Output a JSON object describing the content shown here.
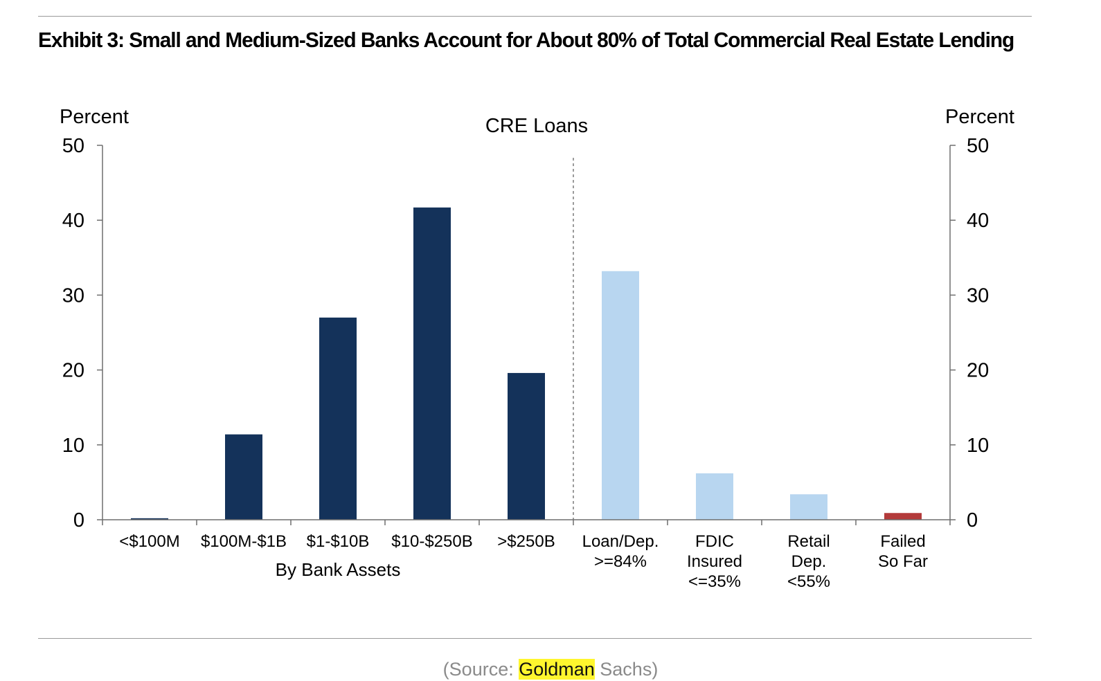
{
  "exhibit_title": "Exhibit 3: Small and Medium-Sized Banks Account for About 80% of Total Commercial Real Estate Lending",
  "source": {
    "prefix": "(Source: ",
    "highlight": "Goldman",
    "suffix": " Sachs)"
  },
  "colors": {
    "dark": "#14325a",
    "light": "#b8d6f0",
    "red": "#b33a3a",
    "axis": "#6e6e6e"
  },
  "chart_data": {
    "type": "bar",
    "title": "CRE Loans",
    "ylabel_left": "Percent",
    "ylabel_right": "Percent",
    "ylim": [
      0,
      50
    ],
    "yticks": [
      0,
      10,
      20,
      30,
      40,
      50
    ],
    "group_label": "By Bank Assets",
    "grid": false,
    "categories": [
      [
        "<$100M"
      ],
      [
        "$100M-$1B"
      ],
      [
        "$1-$10B"
      ],
      [
        "$10-$250B"
      ],
      [
        ">$250B"
      ],
      [
        "Loan/Dep.",
        ">=84%"
      ],
      [
        "FDIC",
        "Insured",
        "<=35%"
      ],
      [
        "Retail",
        "Dep.",
        "<55%"
      ],
      [
        "Failed",
        "So Far"
      ]
    ],
    "values": [
      0.2,
      11.4,
      27.0,
      41.7,
      19.6,
      33.2,
      6.2,
      3.4,
      0.9
    ],
    "bar_colors": [
      "dark",
      "dark",
      "dark",
      "dark",
      "dark",
      "light",
      "light",
      "light",
      "red"
    ]
  }
}
